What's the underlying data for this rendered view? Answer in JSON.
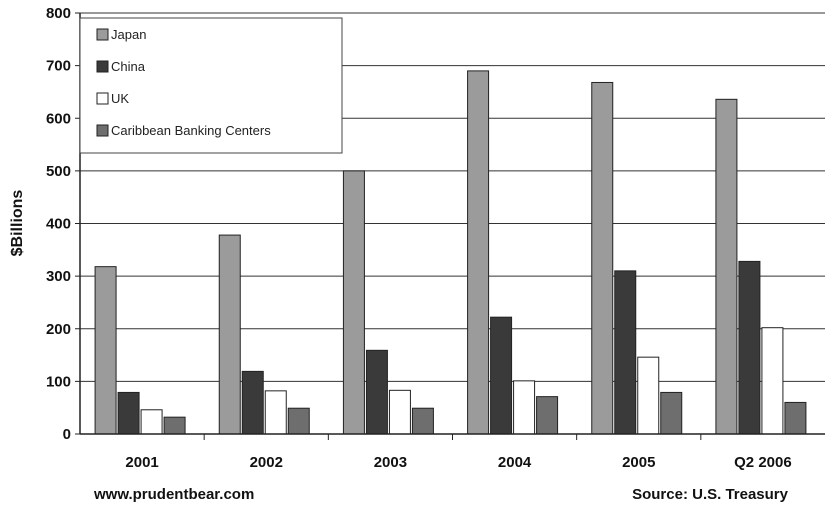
{
  "chart_data": {
    "type": "bar",
    "title": "",
    "xlabel": "",
    "ylabel": "$Billions",
    "ylim": [
      0,
      800
    ],
    "yticks": [
      0,
      100,
      200,
      300,
      400,
      500,
      600,
      700,
      800
    ],
    "categories": [
      "2001",
      "2002",
      "2003",
      "2004",
      "2005",
      "Q2 2006"
    ],
    "series": [
      {
        "name": "Japan",
        "color": "#9b9b9b",
        "values": [
          318,
          378,
          500,
          690,
          668,
          636
        ]
      },
      {
        "name": "China",
        "color": "#3a3a3a",
        "values": [
          79,
          119,
          159,
          222,
          310,
          328
        ]
      },
      {
        "name": "UK",
        "color": "#ffffff",
        "values": [
          46,
          82,
          83,
          101,
          146,
          202
        ]
      },
      {
        "name": "Caribbean Banking Centers",
        "color": "#6e6e6e",
        "values": [
          32,
          49,
          49,
          71,
          79,
          60
        ]
      }
    ],
    "grid": true,
    "legend_position": "top-left"
  },
  "footer": {
    "left": "www.prudentbear.com",
    "right": "Source: U.S. Treasury"
  }
}
